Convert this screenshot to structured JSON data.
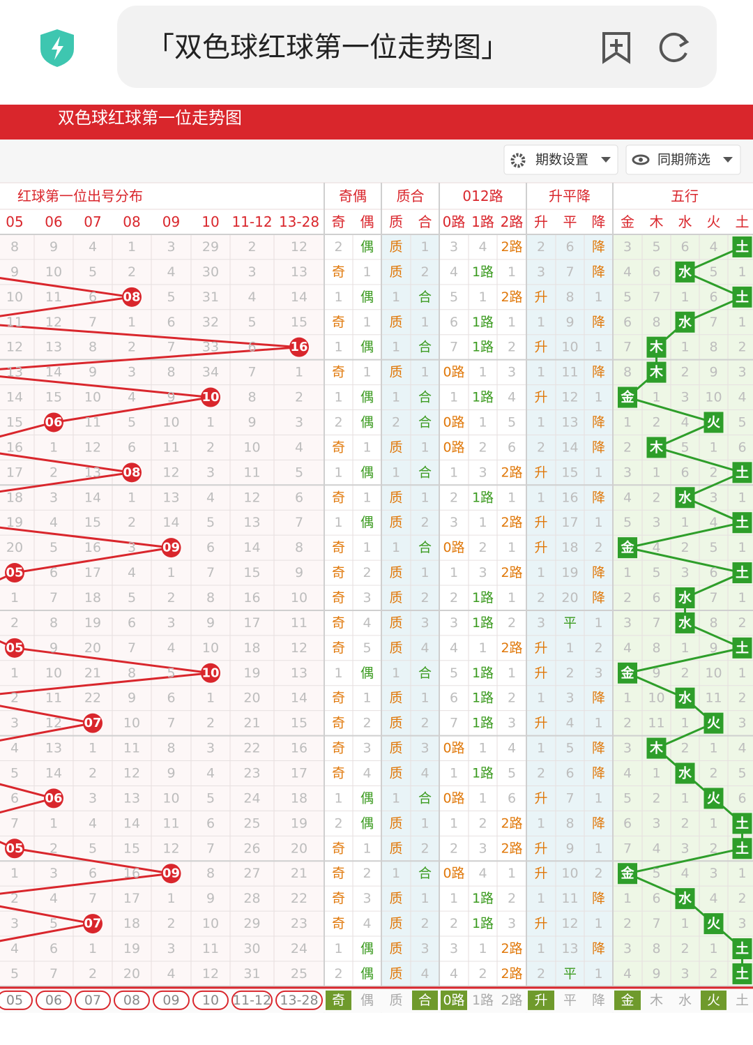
{
  "browser_bar": {
    "title": "「双色球红球第一位走势图」"
  },
  "banner": {
    "title": "双色球红球第一位走势图"
  },
  "controls": {
    "period_settings": "期数设置",
    "same_period_filter": "同期筛选"
  },
  "table": {
    "groups": [
      "红球第一位出号分布",
      "奇偶",
      "质合",
      "012路",
      "升平降",
      "五行"
    ],
    "columns": [
      "05",
      "06",
      "07",
      "08",
      "09",
      "10",
      "11-12",
      "13-28",
      "奇",
      "偶",
      "质",
      "合",
      "0路",
      "1路",
      "2路",
      "升",
      "平",
      "降",
      "金",
      "木",
      "水",
      "火",
      "土"
    ],
    "rows": [
      [
        "8",
        "9",
        "4",
        "1",
        "3",
        "29",
        "2",
        "12",
        "2",
        {
          "text": "偶",
          "hit": true
        },
        {
          "text": "质",
          "hit": true
        },
        "1",
        "3",
        "4",
        {
          "text": "2路",
          "hit": true
        },
        "2",
        "6",
        {
          "text": "降",
          "hit": true
        },
        "3",
        "5",
        "6",
        "4",
        {
          "text": "土",
          "hit": true
        }
      ],
      [
        "9",
        "10",
        "5",
        "2",
        "4",
        "30",
        "3",
        "13",
        {
          "text": "奇",
          "hit": true
        },
        "1",
        {
          "text": "质",
          "hit": true
        },
        "2",
        "4",
        {
          "text": "1路",
          "hit": true
        },
        "1",
        "3",
        "7",
        {
          "text": "降",
          "hit": true
        },
        "4",
        "6",
        {
          "text": "水",
          "hit": true
        },
        "5",
        "1"
      ],
      [
        "10",
        "11",
        "6",
        {
          "text": "08",
          "hit": true
        },
        "5",
        "31",
        "4",
        "14",
        "1",
        {
          "text": "偶",
          "hit": true
        },
        "1",
        {
          "text": "合",
          "hit": true
        },
        "5",
        "1",
        {
          "text": "2路",
          "hit": true
        },
        {
          "text": "升",
          "hit": true
        },
        "8",
        "1",
        "5",
        "7",
        "1",
        "6",
        {
          "text": "土",
          "hit": true
        }
      ],
      [
        "11",
        "12",
        "7",
        "1",
        "6",
        "32",
        "5",
        "15",
        {
          "text": "奇",
          "hit": true
        },
        "1",
        {
          "text": "质",
          "hit": true
        },
        "1",
        "6",
        {
          "text": "1路",
          "hit": true
        },
        "1",
        "1",
        "9",
        {
          "text": "降",
          "hit": true
        },
        "6",
        "8",
        {
          "text": "水",
          "hit": true
        },
        "7",
        "1"
      ],
      [
        "12",
        "13",
        "8",
        "2",
        "7",
        "33",
        "6",
        {
          "text": "16",
          "hit": true
        },
        "1",
        {
          "text": "偶",
          "hit": true
        },
        "1",
        {
          "text": "合",
          "hit": true
        },
        "7",
        {
          "text": "1路",
          "hit": true
        },
        "2",
        {
          "text": "升",
          "hit": true
        },
        "10",
        "1",
        "7",
        {
          "text": "木",
          "hit": true
        },
        "1",
        "8",
        "2"
      ],
      [
        "13",
        "14",
        "9",
        "3",
        "8",
        "34",
        "7",
        "1",
        {
          "text": "奇",
          "hit": true
        },
        "1",
        {
          "text": "质",
          "hit": true
        },
        "1",
        {
          "text": "0路",
          "hit": true
        },
        "1",
        "3",
        "1",
        "11",
        {
          "text": "降",
          "hit": true
        },
        "8",
        {
          "text": "木",
          "hit": true
        },
        "2",
        "9",
        "3"
      ],
      [
        "14",
        "15",
        "10",
        "4",
        "9",
        {
          "text": "10",
          "hit": true
        },
        "8",
        "2",
        "1",
        {
          "text": "偶",
          "hit": true
        },
        "1",
        {
          "text": "合",
          "hit": true
        },
        "1",
        {
          "text": "1路",
          "hit": true
        },
        "4",
        {
          "text": "升",
          "hit": true
        },
        "12",
        "1",
        {
          "text": "金",
          "hit": true
        },
        "1",
        "3",
        "10",
        "4"
      ],
      [
        "15",
        {
          "text": "06",
          "hit": true
        },
        "11",
        "5",
        "10",
        "1",
        "9",
        "3",
        "2",
        {
          "text": "偶",
          "hit": true
        },
        "2",
        {
          "text": "合",
          "hit": true
        },
        {
          "text": "0路",
          "hit": true
        },
        "1",
        "5",
        "1",
        "13",
        {
          "text": "降",
          "hit": true
        },
        "1",
        "2",
        "4",
        {
          "text": "火",
          "hit": true
        },
        "5"
      ],
      [
        "16",
        "1",
        "12",
        "6",
        "11",
        "2",
        "10",
        "4",
        {
          "text": "奇",
          "hit": true
        },
        "1",
        {
          "text": "质",
          "hit": true
        },
        "1",
        {
          "text": "0路",
          "hit": true
        },
        "2",
        "6",
        "2",
        "14",
        {
          "text": "降",
          "hit": true
        },
        "2",
        {
          "text": "木",
          "hit": true
        },
        "5",
        "1",
        "6"
      ],
      [
        "17",
        "2",
        "13",
        {
          "text": "08",
          "hit": true
        },
        "12",
        "3",
        "11",
        "5",
        "1",
        {
          "text": "偶",
          "hit": true
        },
        "1",
        {
          "text": "合",
          "hit": true
        },
        "1",
        "3",
        {
          "text": "2路",
          "hit": true
        },
        {
          "text": "升",
          "hit": true
        },
        "15",
        "1",
        "3",
        "1",
        "6",
        "2",
        {
          "text": "土",
          "hit": true
        }
      ],
      [
        "18",
        "3",
        "14",
        "1",
        "13",
        "4",
        "12",
        "6",
        {
          "text": "奇",
          "hit": true
        },
        "1",
        {
          "text": "质",
          "hit": true
        },
        "1",
        "2",
        {
          "text": "1路",
          "hit": true
        },
        "1",
        "1",
        "16",
        {
          "text": "降",
          "hit": true
        },
        "4",
        "2",
        {
          "text": "水",
          "hit": true
        },
        "3",
        "1"
      ],
      [
        "19",
        "4",
        "15",
        "2",
        "14",
        "5",
        "13",
        "7",
        "1",
        {
          "text": "偶",
          "hit": true
        },
        {
          "text": "质",
          "hit": true
        },
        "2",
        "3",
        "1",
        {
          "text": "2路",
          "hit": true
        },
        {
          "text": "升",
          "hit": true
        },
        "17",
        "1",
        "5",
        "3",
        "1",
        "4",
        {
          "text": "土",
          "hit": true
        }
      ],
      [
        "20",
        "5",
        "16",
        "3",
        {
          "text": "09",
          "hit": true
        },
        "6",
        "14",
        "8",
        {
          "text": "奇",
          "hit": true
        },
        "1",
        "1",
        {
          "text": "合",
          "hit": true
        },
        {
          "text": "0路",
          "hit": true
        },
        "2",
        "1",
        {
          "text": "升",
          "hit": true
        },
        "18",
        "2",
        {
          "text": "金",
          "hit": true
        },
        "4",
        "2",
        "5",
        "1"
      ],
      [
        {
          "text": "05",
          "hit": true
        },
        "6",
        "17",
        "4",
        "1",
        "7",
        "15",
        "9",
        {
          "text": "奇",
          "hit": true
        },
        "2",
        {
          "text": "质",
          "hit": true
        },
        "1",
        "1",
        "3",
        {
          "text": "2路",
          "hit": true
        },
        "1",
        "19",
        {
          "text": "降",
          "hit": true
        },
        "1",
        "5",
        "3",
        "6",
        {
          "text": "土",
          "hit": true
        }
      ],
      [
        "1",
        "7",
        "18",
        "5",
        "2",
        "8",
        "16",
        "10",
        {
          "text": "奇",
          "hit": true
        },
        "3",
        {
          "text": "质",
          "hit": true
        },
        "2",
        "2",
        {
          "text": "1路",
          "hit": true
        },
        "1",
        "2",
        "20",
        {
          "text": "降",
          "hit": true
        },
        "2",
        "6",
        {
          "text": "水",
          "hit": true
        },
        "7",
        "1"
      ],
      [
        "2",
        "8",
        "19",
        "6",
        "3",
        "9",
        "17",
        "11",
        {
          "text": "奇",
          "hit": true
        },
        "4",
        {
          "text": "质",
          "hit": true
        },
        "3",
        "3",
        {
          "text": "1路",
          "hit": true
        },
        "2",
        "3",
        {
          "text": "平",
          "hit": true
        },
        "1",
        "3",
        "7",
        {
          "text": "水",
          "hit": true
        },
        "8",
        "2"
      ],
      [
        {
          "text": "05",
          "hit": true
        },
        "9",
        "20",
        "7",
        "4",
        "10",
        "18",
        "12",
        {
          "text": "奇",
          "hit": true
        },
        "5",
        {
          "text": "质",
          "hit": true
        },
        "4",
        "4",
        "1",
        {
          "text": "2路",
          "hit": true
        },
        {
          "text": "升",
          "hit": true
        },
        "1",
        "2",
        "4",
        "8",
        "1",
        "9",
        {
          "text": "土",
          "hit": true
        }
      ],
      [
        "1",
        "10",
        "21",
        "8",
        "5",
        {
          "text": "10",
          "hit": true
        },
        "19",
        "13",
        "1",
        {
          "text": "偶",
          "hit": true
        },
        "1",
        {
          "text": "合",
          "hit": true
        },
        "5",
        {
          "text": "1路",
          "hit": true
        },
        "1",
        {
          "text": "升",
          "hit": true
        },
        "2",
        "3",
        {
          "text": "金",
          "hit": true
        },
        "9",
        "2",
        "10",
        "1"
      ],
      [
        "2",
        "11",
        "22",
        "9",
        "6",
        "1",
        "20",
        "14",
        {
          "text": "奇",
          "hit": true
        },
        "1",
        {
          "text": "质",
          "hit": true
        },
        "1",
        "6",
        {
          "text": "1路",
          "hit": true
        },
        "2",
        "1",
        "3",
        {
          "text": "降",
          "hit": true
        },
        "1",
        "10",
        {
          "text": "水",
          "hit": true
        },
        "11",
        "2"
      ],
      [
        "3",
        "12",
        {
          "text": "07",
          "hit": true
        },
        "10",
        "7",
        "2",
        "21",
        "15",
        {
          "text": "奇",
          "hit": true
        },
        "2",
        {
          "text": "质",
          "hit": true
        },
        "2",
        "7",
        {
          "text": "1路",
          "hit": true
        },
        "3",
        {
          "text": "升",
          "hit": true
        },
        "4",
        "1",
        "2",
        "11",
        "1",
        {
          "text": "火",
          "hit": true
        },
        "3"
      ],
      [
        "4",
        "13",
        "1",
        "11",
        "8",
        "3",
        "22",
        "16",
        {
          "text": "奇",
          "hit": true
        },
        "3",
        {
          "text": "质",
          "hit": true
        },
        "3",
        {
          "text": "0路",
          "hit": true
        },
        "1",
        "4",
        "1",
        "5",
        {
          "text": "降",
          "hit": true
        },
        "3",
        {
          "text": "木",
          "hit": true
        },
        "2",
        "1",
        "4"
      ],
      [
        "5",
        "14",
        "2",
        "12",
        "9",
        "4",
        "23",
        "17",
        {
          "text": "奇",
          "hit": true
        },
        "4",
        {
          "text": "质",
          "hit": true
        },
        "4",
        "1",
        {
          "text": "1路",
          "hit": true
        },
        "5",
        "2",
        "6",
        {
          "text": "降",
          "hit": true
        },
        "4",
        "1",
        {
          "text": "水",
          "hit": true
        },
        "2",
        "5"
      ],
      [
        "6",
        {
          "text": "06",
          "hit": true
        },
        "3",
        "13",
        "10",
        "5",
        "24",
        "18",
        "1",
        {
          "text": "偶",
          "hit": true
        },
        "1",
        {
          "text": "合",
          "hit": true
        },
        {
          "text": "0路",
          "hit": true
        },
        "1",
        "6",
        {
          "text": "升",
          "hit": true
        },
        "7",
        "1",
        "5",
        "2",
        "1",
        {
          "text": "火",
          "hit": true
        },
        "6"
      ],
      [
        "7",
        "1",
        "4",
        "14",
        "11",
        "6",
        "25",
        "19",
        "2",
        {
          "text": "偶",
          "hit": true
        },
        {
          "text": "质",
          "hit": true
        },
        "1",
        "1",
        "2",
        {
          "text": "2路",
          "hit": true
        },
        "1",
        "8",
        {
          "text": "降",
          "hit": true
        },
        "6",
        "3",
        "2",
        "1",
        {
          "text": "土",
          "hit": true
        }
      ],
      [
        {
          "text": "05",
          "hit": true
        },
        "2",
        "5",
        "15",
        "12",
        "7",
        "26",
        "20",
        {
          "text": "奇",
          "hit": true
        },
        "1",
        {
          "text": "质",
          "hit": true
        },
        "2",
        "2",
        "3",
        {
          "text": "2路",
          "hit": true
        },
        {
          "text": "升",
          "hit": true
        },
        "9",
        "1",
        "7",
        "4",
        "3",
        "2",
        {
          "text": "土",
          "hit": true
        }
      ],
      [
        "1",
        "3",
        "6",
        "16",
        {
          "text": "09",
          "hit": true
        },
        "8",
        "27",
        "21",
        {
          "text": "奇",
          "hit": true
        },
        "2",
        "1",
        {
          "text": "合",
          "hit": true
        },
        {
          "text": "0路",
          "hit": true
        },
        "4",
        "1",
        {
          "text": "升",
          "hit": true
        },
        "10",
        "2",
        {
          "text": "金",
          "hit": true
        },
        "5",
        "4",
        "3",
        "1"
      ],
      [
        "2",
        "4",
        "7",
        "17",
        "1",
        "9",
        "28",
        "22",
        {
          "text": "奇",
          "hit": true
        },
        "3",
        {
          "text": "质",
          "hit": true
        },
        "1",
        "1",
        {
          "text": "1路",
          "hit": true
        },
        "2",
        "1",
        "11",
        {
          "text": "降",
          "hit": true
        },
        "1",
        "6",
        {
          "text": "水",
          "hit": true
        },
        "4",
        "2"
      ],
      [
        "3",
        "5",
        {
          "text": "07",
          "hit": true
        },
        "18",
        "2",
        "10",
        "29",
        "23",
        {
          "text": "奇",
          "hit": true
        },
        "4",
        {
          "text": "质",
          "hit": true
        },
        "2",
        "2",
        {
          "text": "1路",
          "hit": true
        },
        "3",
        {
          "text": "升",
          "hit": true
        },
        "12",
        "1",
        "2",
        "7",
        "1",
        {
          "text": "火",
          "hit": true
        },
        "3"
      ],
      [
        "4",
        "6",
        "1",
        "19",
        "3",
        "11",
        "30",
        "24",
        "1",
        {
          "text": "偶",
          "hit": true
        },
        {
          "text": "质",
          "hit": true
        },
        "3",
        "3",
        "1",
        {
          "text": "2路",
          "hit": true
        },
        "1",
        "13",
        {
          "text": "降",
          "hit": true
        },
        "3",
        "8",
        "2",
        "1",
        {
          "text": "土",
          "hit": true
        }
      ],
      [
        "5",
        "7",
        "2",
        "20",
        "4",
        "12",
        "31",
        "25",
        "2",
        {
          "text": "偶",
          "hit": true
        },
        {
          "text": "质",
          "hit": true
        },
        "4",
        "4",
        "2",
        {
          "text": "2路",
          "hit": true
        },
        "2",
        {
          "text": "平",
          "hit": true
        },
        "1",
        "4",
        "9",
        "3",
        "2",
        {
          "text": "土",
          "hit": true
        }
      ]
    ],
    "footer": [
      "05",
      "06",
      "07",
      "08",
      "09",
      "10",
      "11-12",
      "13-28",
      {
        "text": "奇",
        "hit": true
      },
      "偶",
      "质",
      {
        "text": "合",
        "hit": true
      },
      {
        "text": "0路",
        "hit": true
      },
      "1路",
      "2路",
      {
        "text": "升",
        "hit": true
      },
      "平",
      "降",
      {
        "text": "金",
        "hit": true
      },
      "木",
      "水",
      {
        "text": "火",
        "hit": true
      },
      "土"
    ]
  }
}
